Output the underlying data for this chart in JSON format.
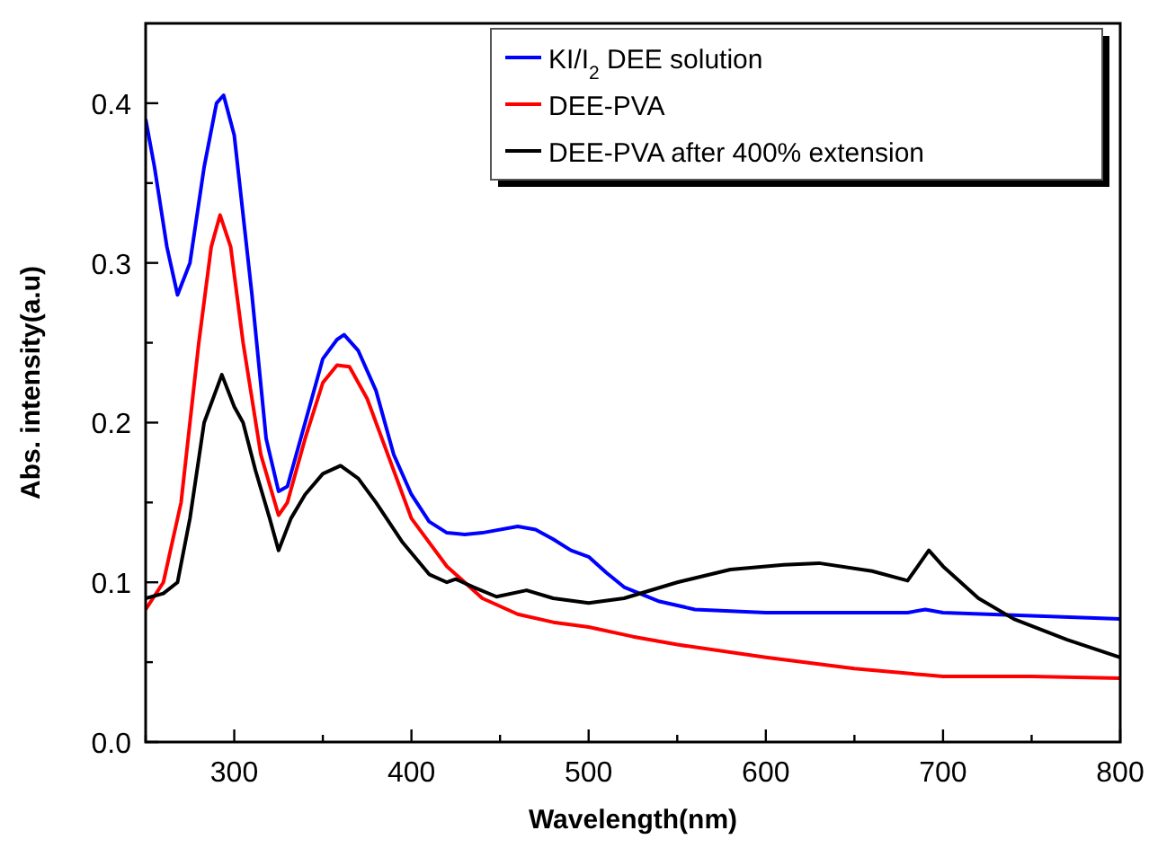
{
  "chart_data": {
    "type": "line",
    "xlabel": "Wavelength(nm)",
    "ylabel": "Abs. intensity(a.u)",
    "xlim": [
      250,
      800
    ],
    "ylim": [
      0,
      0.45
    ],
    "xticks": [
      {
        "value": 250,
        "label": null
      },
      300,
      {
        "value": 350,
        "label": null
      },
      400,
      {
        "value": 450,
        "label": null
      },
      500,
      {
        "value": 550,
        "label": null
      },
      600,
      {
        "value": 650,
        "label": null
      },
      700,
      {
        "value": 750,
        "label": null
      },
      800
    ],
    "yticks": [
      "0.0",
      {
        "value": 0.05,
        "label": null
      },
      0.1,
      {
        "value": 0.15,
        "label": null
      },
      0.2,
      {
        "value": 0.25,
        "label": null
      },
      0.3,
      {
        "value": 0.35,
        "label": null
      },
      0.4
    ],
    "legend": "top right",
    "grid": false,
    "line_style": "solid",
    "series": [
      {
        "name": "KI/I$_{2}$ DEE solution",
        "color": "#0000ff",
        "x": [
          250,
          255,
          262,
          268,
          275,
          283,
          290,
          294,
          300,
          310,
          318,
          325,
          330,
          340,
          350,
          358,
          362,
          370,
          380,
          390,
          400,
          410,
          420,
          430,
          440,
          460,
          470,
          480,
          490,
          500,
          510,
          520,
          540,
          560,
          600,
          650,
          680,
          690,
          700,
          750,
          800
        ],
        "values": [
          0.39,
          0.36,
          0.31,
          0.28,
          0.3,
          0.36,
          0.4,
          0.405,
          0.38,
          0.28,
          0.19,
          0.157,
          0.16,
          0.2,
          0.24,
          0.252,
          0.255,
          0.245,
          0.22,
          0.18,
          0.155,
          0.138,
          0.131,
          0.13,
          0.131,
          0.135,
          0.133,
          0.127,
          0.12,
          0.116,
          0.106,
          0.097,
          0.088,
          0.083,
          0.081,
          0.081,
          0.081,
          0.083,
          0.081,
          0.079,
          0.077
        ]
      },
      {
        "name": "DEE-PVA",
        "color": "#ff0000",
        "x": [
          250,
          260,
          270,
          280,
          287,
          292,
          298,
          305,
          315,
          325,
          330,
          340,
          350,
          358,
          365,
          375,
          390,
          400,
          420,
          440,
          460,
          480,
          500,
          525,
          550,
          600,
          650,
          690,
          700,
          750,
          800
        ],
        "values": [
          0.083,
          0.1,
          0.15,
          0.25,
          0.31,
          0.33,
          0.31,
          0.25,
          0.18,
          0.142,
          0.15,
          0.19,
          0.225,
          0.236,
          0.235,
          0.215,
          0.17,
          0.14,
          0.11,
          0.09,
          0.08,
          0.075,
          0.072,
          0.066,
          0.061,
          0.053,
          0.046,
          0.042,
          0.041,
          0.041,
          0.04
        ]
      },
      {
        "name": "DEE-PVA after 400% extension",
        "color": "#000000",
        "x": [
          250,
          260,
          268,
          275,
          283,
          293,
          300,
          305,
          312,
          320,
          325,
          332,
          340,
          350,
          360,
          370,
          380,
          395,
          410,
          420,
          425,
          435,
          448,
          465,
          480,
          500,
          520,
          550,
          580,
          610,
          630,
          660,
          680,
          692,
          700,
          720,
          740,
          770,
          800
        ],
        "values": [
          0.09,
          0.093,
          0.1,
          0.14,
          0.2,
          0.23,
          0.21,
          0.2,
          0.17,
          0.14,
          0.12,
          0.14,
          0.155,
          0.168,
          0.173,
          0.165,
          0.15,
          0.125,
          0.105,
          0.1,
          0.102,
          0.097,
          0.091,
          0.095,
          0.09,
          0.087,
          0.09,
          0.1,
          0.108,
          0.111,
          0.112,
          0.107,
          0.101,
          0.12,
          0.11,
          0.09,
          0.077,
          0.064,
          0.053
        ]
      }
    ]
  }
}
